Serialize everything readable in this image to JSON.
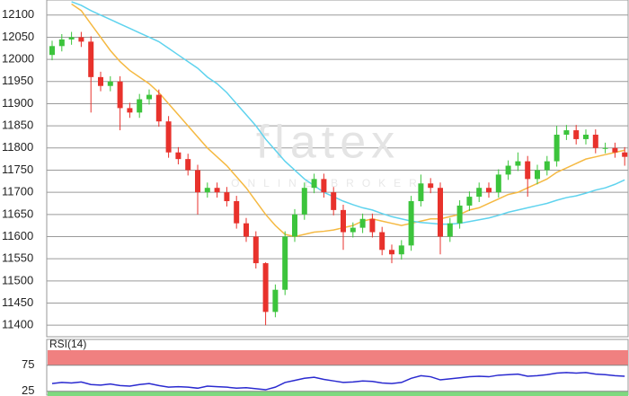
{
  "chart_data": [
    {
      "type": "candlestick",
      "watermark": {
        "logo": "flatex",
        "tagline": "ONLINE BROKER"
      },
      "ylim": [
        11374,
        12134
      ],
      "yticks": [
        11400,
        11450,
        11500,
        11550,
        11600,
        11650,
        11700,
        11750,
        11800,
        11850,
        11900,
        11950,
        12000,
        12050,
        12100
      ],
      "grid": true,
      "up_color": "#3cc43c",
      "down_color": "#e8322c",
      "open": [
        12010,
        12030,
        12045,
        12050,
        12040,
        11960,
        11940,
        11950,
        11890,
        11880,
        11910,
        11920,
        11860,
        11790,
        11775,
        11750,
        11700,
        11710,
        11700,
        11680,
        11630,
        11600,
        11540,
        11430,
        11480,
        11600,
        11650,
        11710,
        11730,
        11700,
        11660,
        11610,
        11620,
        11640,
        11610,
        11570,
        11560,
        11580,
        11680,
        11720,
        11710,
        11600,
        11630,
        11670,
        11690,
        11710,
        11700,
        11740,
        11760,
        11770,
        11730,
        11750,
        11770,
        11830,
        11840,
        11820,
        11830,
        11800,
        11800,
        11790
      ],
      "high": [
        12042,
        12057,
        12062,
        12062,
        12052,
        11972,
        11962,
        11962,
        11902,
        11922,
        11932,
        11932,
        11872,
        11802,
        11787,
        11762,
        11722,
        11722,
        11712,
        11692,
        11642,
        11612,
        11542,
        11492,
        11612,
        11662,
        11722,
        11742,
        11742,
        11712,
        11672,
        11632,
        11652,
        11652,
        11622,
        11582,
        11592,
        11692,
        11740,
        11732,
        11722,
        11642,
        11682,
        11702,
        11722,
        11722,
        11752,
        11772,
        11790,
        11782,
        11762,
        11782,
        11850,
        11852,
        11852,
        11842,
        11842,
        11812,
        11812,
        11802
      ],
      "low": [
        11998,
        12018,
        12033,
        12028,
        11880,
        11928,
        11928,
        11840,
        11868,
        11868,
        11898,
        11848,
        11778,
        11763,
        11738,
        11650,
        11688,
        11688,
        11668,
        11618,
        11588,
        11528,
        11400,
        11418,
        11468,
        11588,
        11638,
        11698,
        11688,
        11648,
        11570,
        11598,
        11608,
        11598,
        11558,
        11540,
        11548,
        11568,
        11668,
        11698,
        11560,
        11588,
        11618,
        11658,
        11678,
        11688,
        11688,
        11728,
        11748,
        11690,
        11718,
        11738,
        11758,
        11818,
        11808,
        11808,
        11788,
        11788,
        11778,
        11760
      ],
      "close": [
        12030,
        12045,
        12050,
        12040,
        11960,
        11940,
        11950,
        11890,
        11880,
        11910,
        11920,
        11860,
        11790,
        11775,
        11750,
        11700,
        11710,
        11700,
        11680,
        11630,
        11600,
        11540,
        11430,
        11480,
        11600,
        11650,
        11710,
        11730,
        11700,
        11660,
        11610,
        11620,
        11640,
        11610,
        11570,
        11560,
        11580,
        11680,
        11720,
        11710,
        11600,
        11630,
        11670,
        11690,
        11710,
        11700,
        11740,
        11760,
        11770,
        11730,
        11750,
        11770,
        11830,
        11840,
        11820,
        11830,
        11800,
        11800,
        11790,
        11780
      ],
      "series": [
        {
          "color": "#f5b942",
          "values": [
            null,
            null,
            12125,
            12110,
            12080,
            12050,
            12020,
            11995,
            11975,
            11960,
            11945,
            11925,
            11900,
            11875,
            11850,
            11825,
            11800,
            11780,
            11760,
            11735,
            11710,
            11680,
            11650,
            11625,
            11605,
            11600,
            11605,
            11610,
            11612,
            11615,
            11620,
            11625,
            11635,
            11640,
            11635,
            11630,
            11625,
            11630,
            11635,
            11640,
            11640,
            11645,
            11650,
            11660,
            11665,
            11675,
            11685,
            11695,
            11700,
            11710,
            11720,
            11730,
            11745,
            11755,
            11765,
            11775,
            11780,
            11785,
            11790,
            11795
          ]
        },
        {
          "color": "#5fd3ee",
          "values": [
            null,
            null,
            12130,
            12122,
            12110,
            12100,
            12090,
            12080,
            12070,
            12060,
            12050,
            12040,
            12025,
            12010,
            11995,
            11980,
            11960,
            11945,
            11925,
            11900,
            11875,
            11850,
            11820,
            11795,
            11770,
            11750,
            11730,
            11715,
            11700,
            11690,
            11680,
            11672,
            11665,
            11660,
            11652,
            11645,
            11640,
            11635,
            11632,
            11630,
            11628,
            11628,
            11630,
            11634,
            11638,
            11642,
            11648,
            11655,
            11660,
            11665,
            11670,
            11675,
            11682,
            11688,
            11692,
            11698,
            11705,
            11710,
            11718,
            11728
          ]
        }
      ]
    },
    {
      "type": "line",
      "title": "RSI(14)",
      "ylim": [
        16,
        104
      ],
      "yticks": [
        25,
        75
      ],
      "upper_zone_color": "#f08080",
      "lower_zone_color": "#7fd97f",
      "series": [
        {
          "color": "#2a2ad0",
          "values": [
            40,
            42,
            41,
            43,
            38,
            37,
            39,
            36,
            35,
            38,
            40,
            36,
            33,
            34,
            33,
            31,
            35,
            34,
            33,
            31,
            32,
            30,
            28,
            33,
            42,
            46,
            50,
            52,
            48,
            45,
            42,
            43,
            45,
            44,
            41,
            40,
            42,
            50,
            55,
            53,
            47,
            49,
            51,
            53,
            54,
            53,
            56,
            57,
            58,
            54,
            55,
            57,
            60,
            61,
            60,
            61,
            58,
            57,
            55,
            54
          ]
        }
      ]
    }
  ]
}
